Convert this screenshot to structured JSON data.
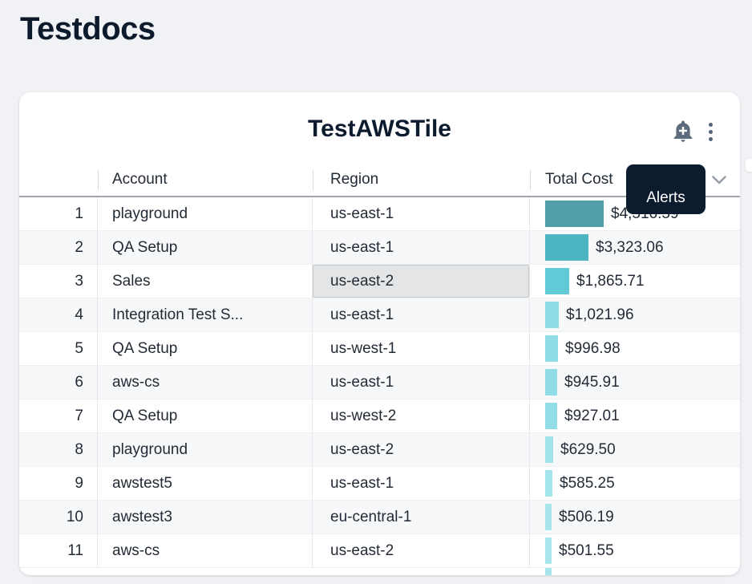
{
  "page": {
    "title": "Testdocs",
    "background_color": "#f0f2f5"
  },
  "tile": {
    "title": "TestAWSTile",
    "icons": {
      "alert": "add-alert-bell-plus",
      "menu": "kebab-vertical-dots",
      "column_menu": "chevron-down"
    },
    "icon_color": "#5d6b7c",
    "tooltip": {
      "text": "Alerts",
      "background_color": "#0d1b2e",
      "text_color": "#ffffff"
    }
  },
  "table": {
    "columns": [
      "Account",
      "Region",
      "Total Cost"
    ],
    "highlighted_cell": {
      "row": 3,
      "column": "Region",
      "background": "#e4e5e7",
      "border": "#c5c8cb"
    },
    "rows": [
      {
        "index": "1",
        "account": "playground",
        "region": "us-east-1",
        "total_cost": "$4,516.59",
        "value": 4516.59,
        "bar_color": "#4f9ea9"
      },
      {
        "index": "2",
        "account": "QA Setup",
        "region": "us-east-1",
        "total_cost": "$3,323.06",
        "value": 3323.06,
        "bar_color": "#4db5c1"
      },
      {
        "index": "3",
        "account": "Sales",
        "region": "us-east-2",
        "total_cost": "$1,865.71",
        "value": 1865.71,
        "bar_color": "#62cad6"
      },
      {
        "index": "4",
        "account": "Integration Test S...",
        "region": "us-east-1",
        "total_cost": "$1,021.96",
        "value": 1021.96,
        "bar_color": "#8edce6"
      },
      {
        "index": "5",
        "account": "QA Setup",
        "region": "us-west-1",
        "total_cost": "$996.98",
        "value": 996.98,
        "bar_color": "#8fdde7"
      },
      {
        "index": "6",
        "account": "aws-cs",
        "region": "us-east-1",
        "total_cost": "$945.91",
        "value": 945.91,
        "bar_color": "#90dde7"
      },
      {
        "index": "7",
        "account": "QA Setup",
        "region": "us-west-2",
        "total_cost": "$927.01",
        "value": 927.01,
        "bar_color": "#91dee7"
      },
      {
        "index": "8",
        "account": "playground",
        "region": "us-east-2",
        "total_cost": "$629.50",
        "value": 629.5,
        "bar_color": "#a2e3ea"
      },
      {
        "index": "9",
        "account": "awstest5",
        "region": "us-east-1",
        "total_cost": "$585.25",
        "value": 585.25,
        "bar_color": "#a4e4eb"
      },
      {
        "index": "10",
        "account": "awstest3",
        "region": "eu-central-1",
        "total_cost": "$506.19",
        "value": 506.19,
        "bar_color": "#a7e5ec"
      },
      {
        "index": "11",
        "account": "aws-cs",
        "region": "us-east-2",
        "total_cost": "$501.55",
        "value": 501.55,
        "bar_color": "#a8e5ec"
      }
    ],
    "partial_row": {
      "visible": true,
      "bar_color": "#a8e5ec"
    }
  }
}
